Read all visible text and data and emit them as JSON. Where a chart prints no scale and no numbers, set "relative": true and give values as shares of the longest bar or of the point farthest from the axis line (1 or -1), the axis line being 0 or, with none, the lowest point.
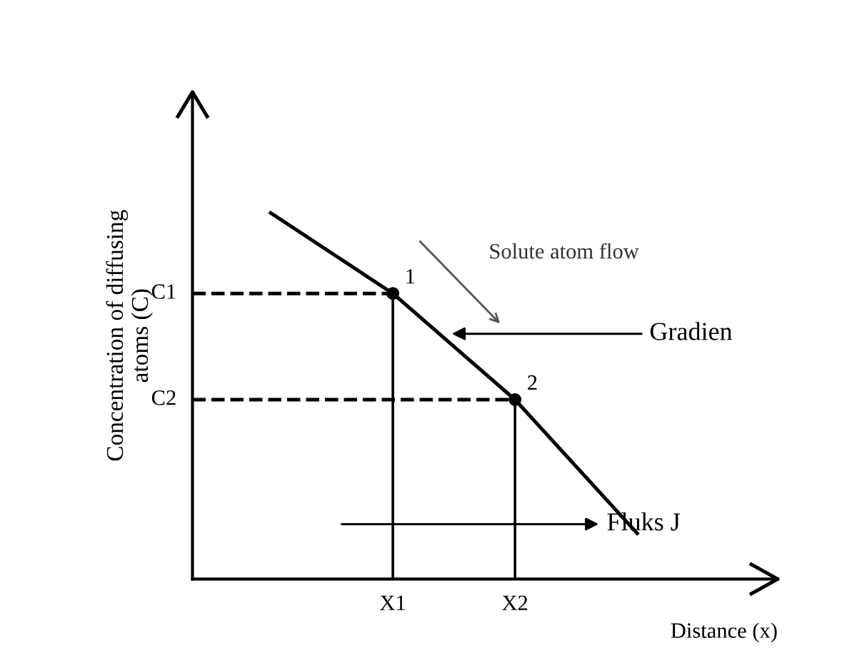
{
  "chart_data": {
    "type": "line",
    "relative": true,
    "xlabel": "Distance (x)",
    "ylabel": "Concentration of diffusing\natoms (C)",
    "categories": [
      null,
      "X1",
      "X2",
      null
    ],
    "grid": "x",
    "legend": false,
    "series": [
      {
        "color": "#000000",
        "values": [
          1,
          0.78,
          0.49,
          0.125
        ]
      },
      {
        "type": "scatter",
        "color": "#000000",
        "marker": "circle",
        "values": [
          null,
          0.78,
          0.49,
          null
        ]
      }
    ],
    "annotations": [
      "C1",
      "C2",
      "1",
      "2",
      "Solute atom flow",
      "Gradien",
      "Fluks J"
    ]
  }
}
